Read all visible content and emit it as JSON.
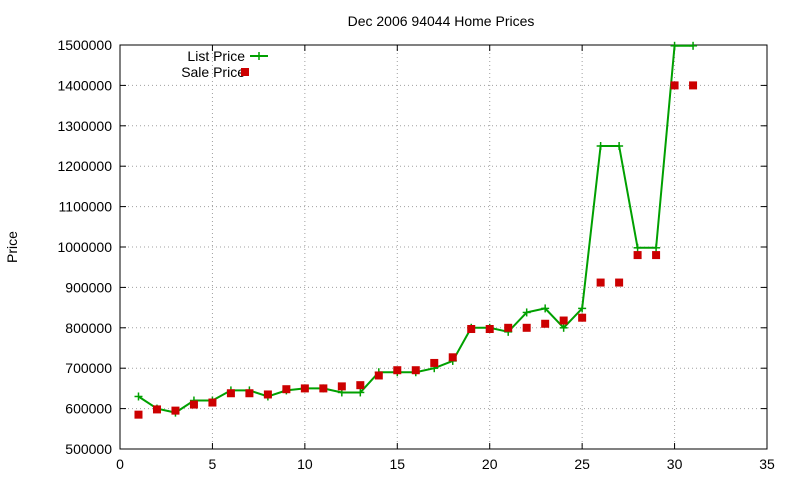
{
  "chart_data": {
    "type": "line",
    "title": "Dec 2006 94044 Home Prices",
    "xlabel": "",
    "ylabel": "Price",
    "xlim": [
      0,
      35
    ],
    "ylim": [
      500000,
      1500000
    ],
    "x_ticks": [
      0,
      5,
      10,
      15,
      20,
      25,
      30,
      35
    ],
    "y_ticks": [
      500000,
      600000,
      700000,
      800000,
      900000,
      1000000,
      1100000,
      1200000,
      1300000,
      1400000,
      1500000
    ],
    "grid": true,
    "legend_position": "top-left",
    "series": [
      {
        "name": "List Price",
        "style": "line-points",
        "color": "#00a000",
        "x": [
          1,
          2,
          3,
          4,
          5,
          6,
          7,
          8,
          9,
          10,
          11,
          12,
          13,
          14,
          15,
          16,
          17,
          18,
          19,
          20,
          21,
          22,
          23,
          24,
          25,
          26,
          27,
          28,
          29,
          30,
          31
        ],
        "y": [
          630000,
          600000,
          590000,
          620000,
          620000,
          645000,
          645000,
          630000,
          645000,
          650000,
          650000,
          640000,
          640000,
          690000,
          690000,
          690000,
          700000,
          718000,
          800000,
          800000,
          790000,
          838000,
          848000,
          800000,
          848000,
          1250000,
          1250000,
          998000,
          998000,
          1498000,
          1498000
        ]
      },
      {
        "name": "Sale Price",
        "style": "points",
        "color": "#cc0000",
        "x": [
          1,
          2,
          3,
          4,
          5,
          6,
          7,
          8,
          9,
          10,
          11,
          12,
          13,
          14,
          15,
          16,
          17,
          18,
          19,
          20,
          21,
          22,
          23,
          24,
          25,
          26,
          27,
          28,
          29,
          30,
          31
        ],
        "y": [
          585000,
          598000,
          595000,
          610000,
          615000,
          638000,
          638000,
          635000,
          648000,
          650000,
          650000,
          655000,
          658000,
          682000,
          695000,
          695000,
          713000,
          727000,
          797000,
          797000,
          800000,
          800000,
          810000,
          818000,
          825000,
          912000,
          912000,
          980000,
          980000,
          1400000,
          1400000
        ]
      }
    ]
  }
}
